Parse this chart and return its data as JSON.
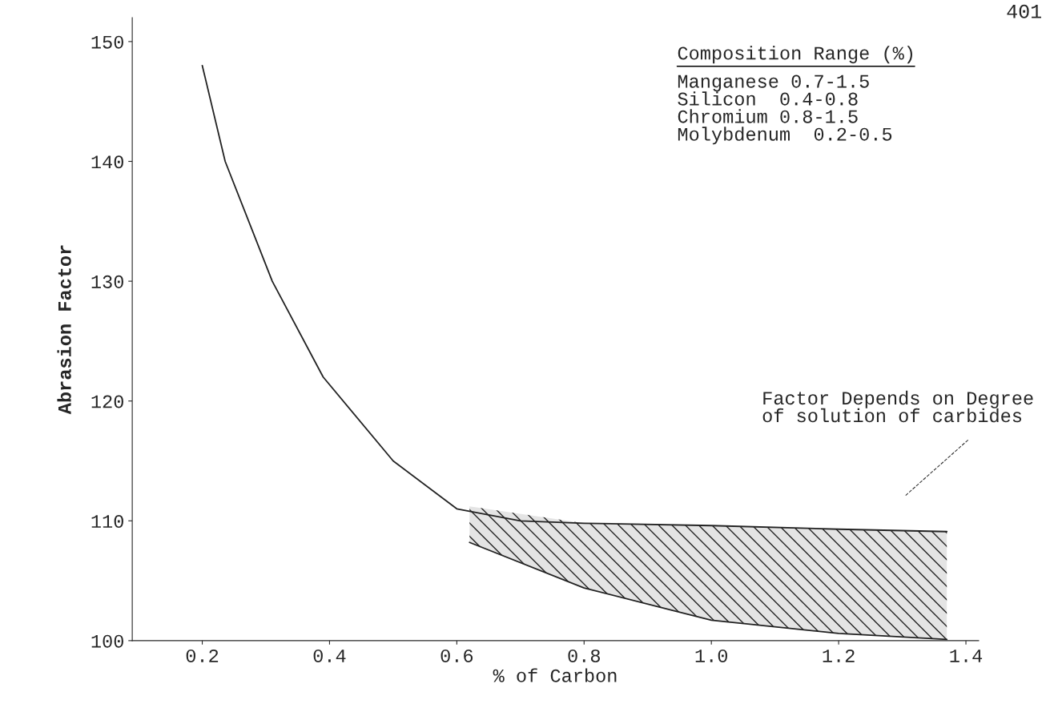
{
  "chart_data": {
    "type": "line",
    "xlabel": "% of Carbon",
    "ylabel": "Abrasion Factor",
    "xlim": [
      0.09,
      1.42
    ],
    "ylim": [
      100,
      152
    ],
    "xticks": [
      0.2,
      0.4,
      0.6,
      0.8,
      {
        "value": 1.0,
        "label": "1.0"
      },
      1.2,
      1.4
    ],
    "yticks": [
      100,
      110,
      120,
      130,
      140,
      150
    ],
    "grid": false,
    "line_style": "solid",
    "series": [
      {
        "color": "#222222",
        "x": [
          0.2,
          0.236,
          0.31,
          0.39,
          0.5,
          0.6,
          0.7,
          0.8,
          1.0,
          1.2,
          1.37
        ],
        "values": [
          148,
          140,
          130,
          122,
          115,
          111,
          110,
          109.8,
          109.6,
          109.3,
          109.1
        ]
      },
      {
        "color": "#222222",
        "x": [
          0.62,
          0.8,
          1.0,
          1.2,
          1.37
        ],
        "values": [
          108.2,
          104.4,
          101.7,
          100.6,
          100.1
        ],
        "lower": [
          108.2,
          104.4,
          101.7,
          100.6,
          100.1
        ],
        "upper": [
          111.2,
          109.8,
          109.6,
          109.3,
          109.1
        ]
      }
    ],
    "annotations": [
      "401",
      "Composition Range (%)",
      "Manganese 0.7-1.5\nSilicon  0.4-0.8\nChromium 0.8-1.5\nMolybdenum  0.2-0.5",
      "Factor Depends on Degree\nof solution of carbides"
    ]
  }
}
